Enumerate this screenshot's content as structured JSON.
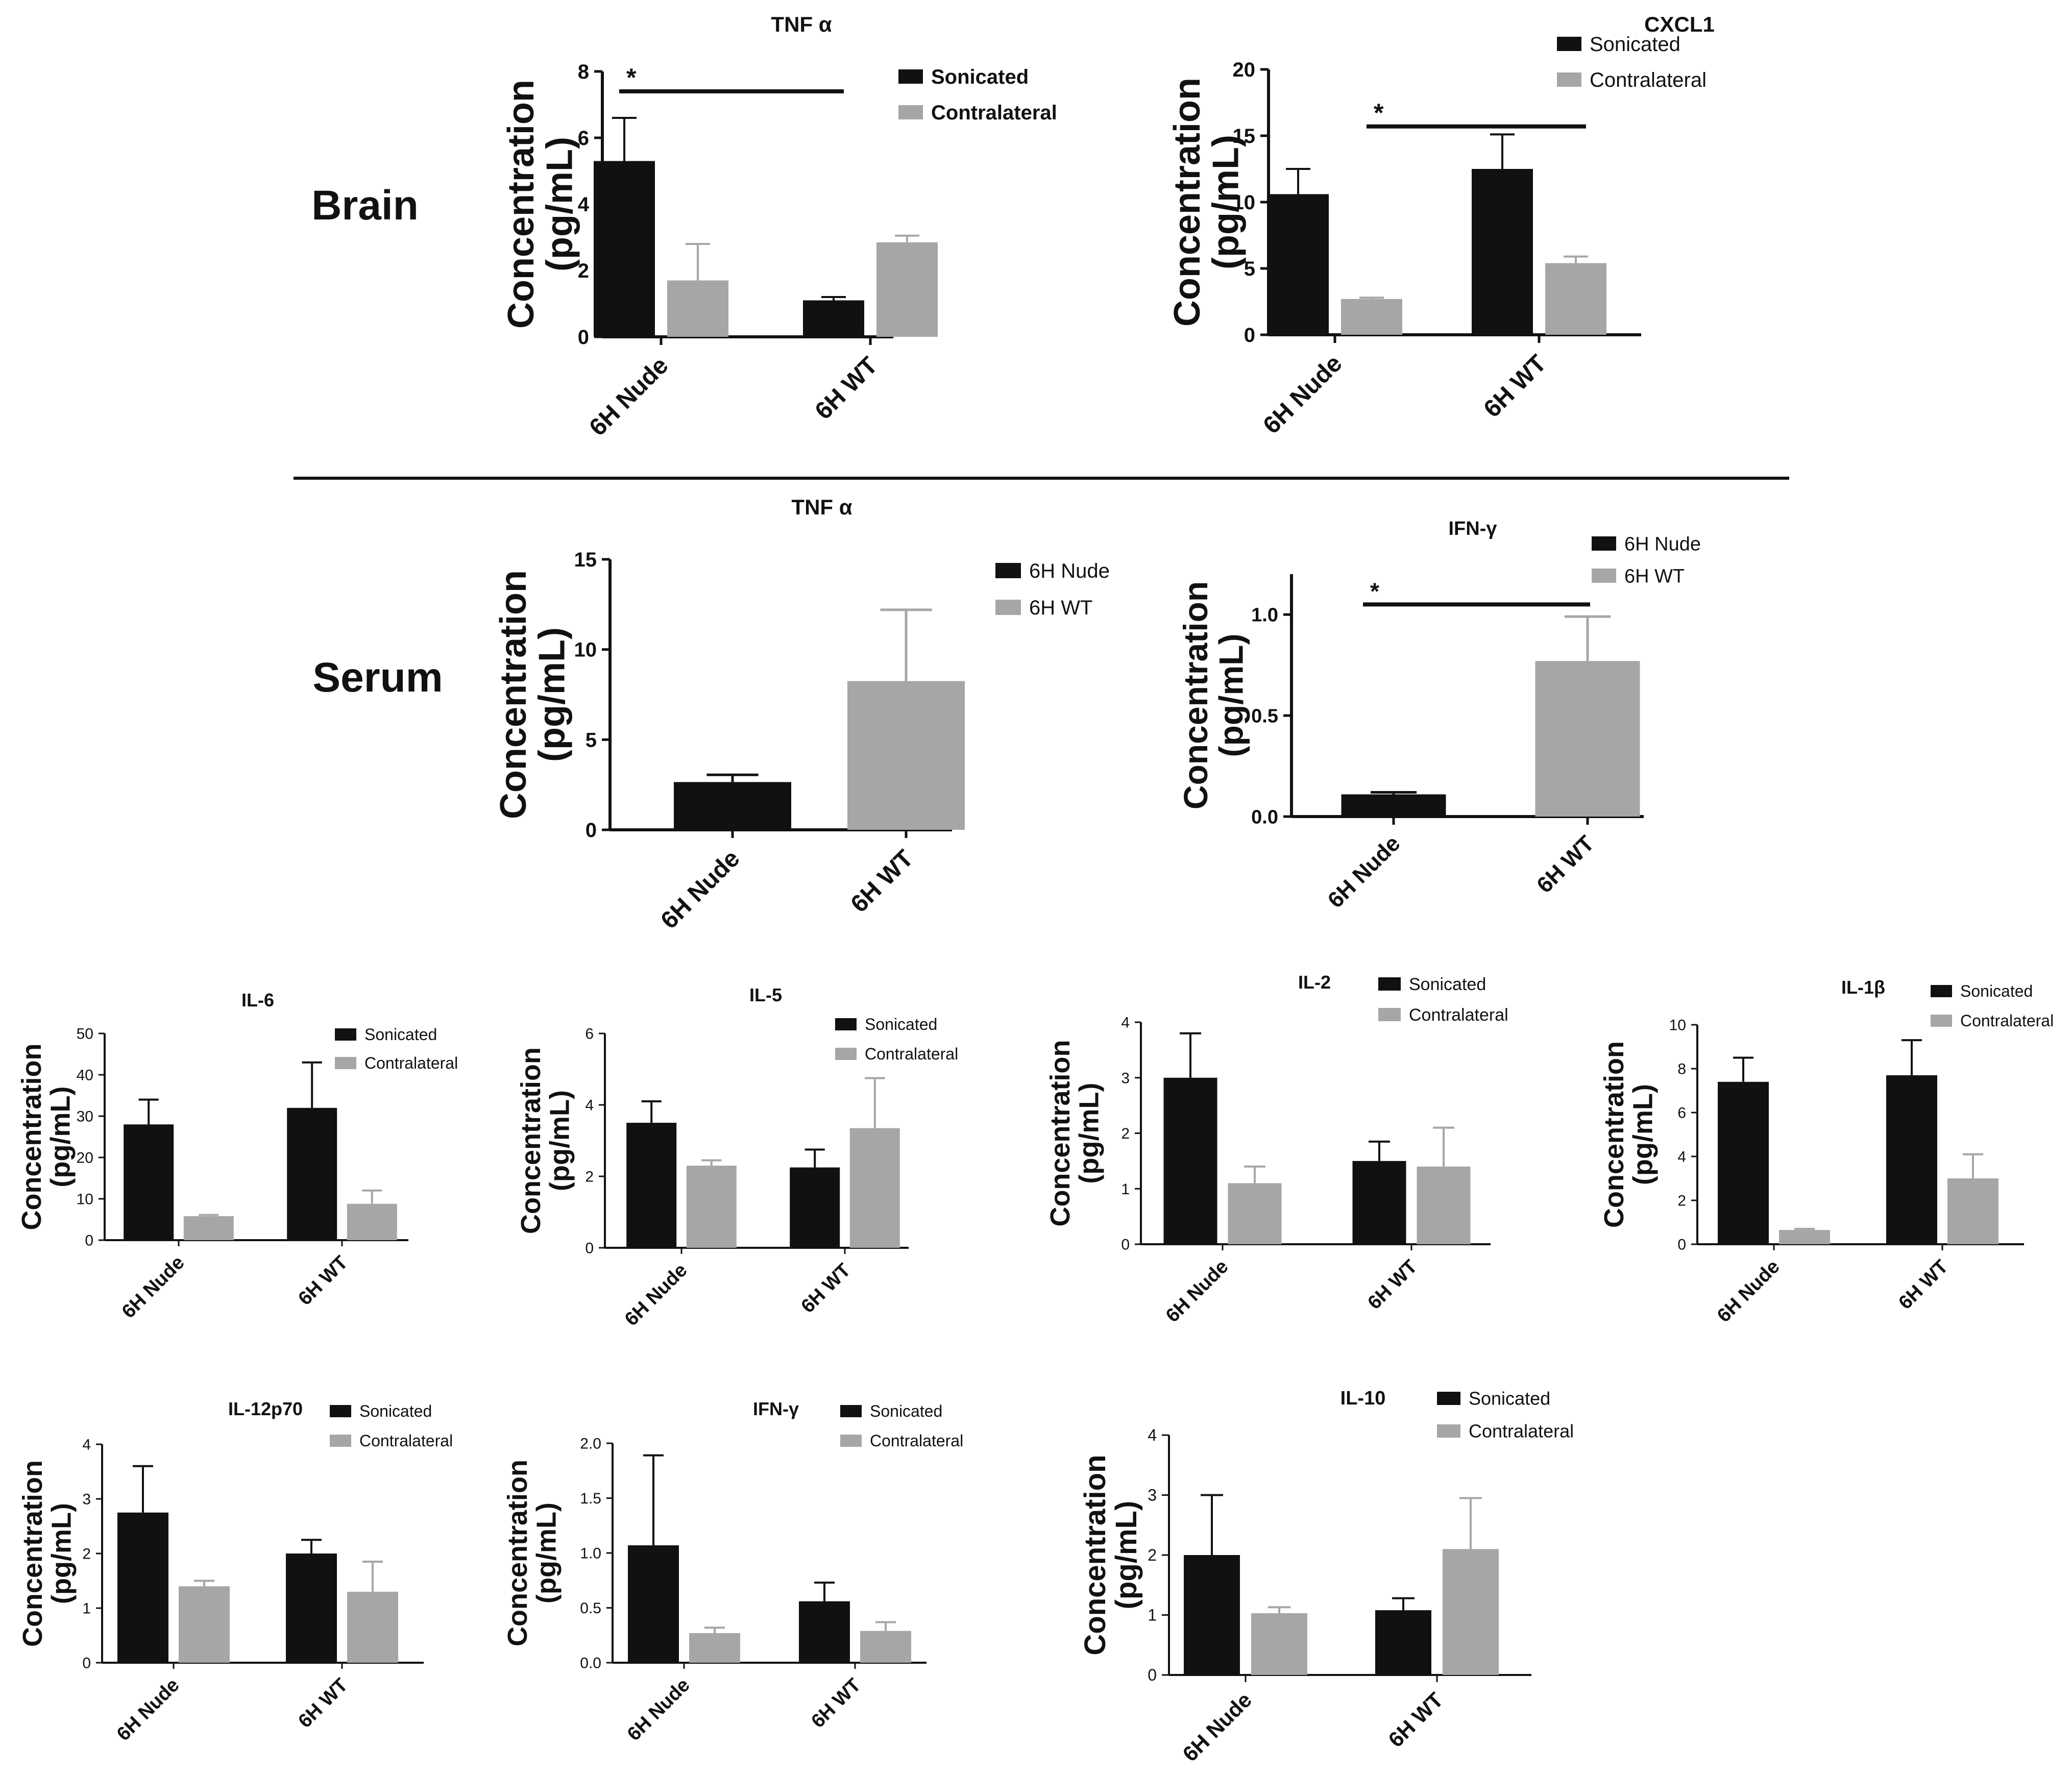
{
  "sections": {
    "brain": "Brain",
    "serum": "Serum"
  },
  "colors": {
    "black": "#111111",
    "gray": "#a6a6a8",
    "axis": "#111111"
  },
  "chart_data": [
    {
      "id": "brain-tnfa",
      "type": "bar",
      "title": "TNF α",
      "ylabel": [
        "Concentration",
        "(pg/mL)"
      ],
      "categories": [
        "6H Nude",
        "6H WT"
      ],
      "series": [
        {
          "name": "Sonicated",
          "color": "#111111",
          "values": [
            5.3,
            1.1
          ],
          "errors": [
            1.3,
            0.1
          ]
        },
        {
          "name": "Contralateral",
          "color": "#a6a6a8",
          "values": [
            1.7,
            2.85
          ],
          "errors": [
            1.1,
            0.2
          ]
        }
      ],
      "ylim": [
        0,
        8
      ],
      "yticks": [
        "0",
        "2",
        "4",
        "6",
        "8"
      ],
      "significance": [
        {
          "label": "*",
          "from": "6H Nude Sonicated",
          "to": "6H WT Sonicated",
          "y": 7.4
        }
      ]
    },
    {
      "id": "brain-cxcl1",
      "type": "bar",
      "title": "CXCL1",
      "ylabel": [
        "Concentration",
        "(pg/mL)"
      ],
      "categories": [
        "6H Nude",
        "6H WT"
      ],
      "series": [
        {
          "name": "Sonicated",
          "color": "#111111",
          "values": [
            10.6,
            12.5
          ],
          "errors": [
            1.9,
            2.6
          ]
        },
        {
          "name": "Contralateral",
          "color": "#a6a6a8",
          "values": [
            2.7,
            5.4
          ],
          "errors": [
            0.1,
            0.5
          ]
        }
      ],
      "ylim": [
        0,
        20
      ],
      "yticks": [
        "0",
        "5",
        "10",
        "15",
        "20"
      ],
      "significance": [
        {
          "label": "*",
          "from": "6H Nude Contralateral",
          "to": "6H WT Contralateral",
          "y": 15.7
        }
      ]
    },
    {
      "id": "serum-tnfa",
      "type": "bar",
      "title": "TNF α",
      "ylabel": [
        "Concentration",
        "(pg/mL)"
      ],
      "categories": [
        "6H Nude",
        "6H WT"
      ],
      "series": [
        {
          "name": "6H Nude / 6H WT",
          "values": [
            2.65,
            8.25
          ],
          "errors": [
            0.4,
            3.95
          ],
          "colors": [
            "#111111",
            "#a6a6a8"
          ]
        }
      ],
      "legend": [
        {
          "name": "6H Nude",
          "color": "#111111"
        },
        {
          "name": "6H WT",
          "color": "#a6a6a8"
        }
      ],
      "ylim": [
        0,
        15
      ],
      "yticks": [
        "0",
        "5",
        "10",
        "15"
      ]
    },
    {
      "id": "serum-ifng",
      "type": "bar",
      "title": "IFN-γ",
      "ylabel": [
        "Concentration",
        "(pg/mL)"
      ],
      "categories": [
        "6H Nude",
        "6H WT"
      ],
      "series": [
        {
          "name": "6H Nude / 6H WT",
          "values": [
            0.11,
            0.77
          ],
          "errors": [
            0.01,
            0.22
          ],
          "colors": [
            "#111111",
            "#a6a6a8"
          ]
        }
      ],
      "legend": [
        {
          "name": "6H Nude",
          "color": "#111111"
        },
        {
          "name": "6H WT",
          "color": "#a6a6a8"
        }
      ],
      "ylim": [
        0,
        1.2
      ],
      "yticks": [
        "0.0",
        "0.5",
        "1.0"
      ],
      "ytickvals": [
        0,
        0.5,
        1.0
      ],
      "significance": [
        {
          "label": "*",
          "from": "6H Nude",
          "to": "6H WT",
          "y": 1.05
        }
      ]
    },
    {
      "id": "il6",
      "type": "bar",
      "title": "IL-6",
      "ylabel": [
        "Concentration",
        "(pg/mL)"
      ],
      "categories": [
        "6H Nude",
        "6H WT"
      ],
      "series": [
        {
          "name": "Sonicated",
          "color": "#111111",
          "values": [
            28,
            32
          ],
          "errors": [
            6,
            11
          ]
        },
        {
          "name": "Contralateral",
          "color": "#a6a6a8",
          "values": [
            5.8,
            8.8
          ],
          "errors": [
            0.3,
            3.2
          ]
        }
      ],
      "ylim": [
        0,
        50
      ],
      "yticks": [
        "0",
        "10",
        "20",
        "30",
        "40",
        "50"
      ]
    },
    {
      "id": "il5",
      "type": "bar",
      "title": "IL-5",
      "ylabel": [
        "Concentration",
        "(pg/mL)"
      ],
      "categories": [
        "6H Nude",
        "6H WT"
      ],
      "series": [
        {
          "name": "Sonicated",
          "color": "#111111",
          "values": [
            3.5,
            2.25
          ],
          "errors": [
            0.6,
            0.5
          ]
        },
        {
          "name": "Contralateral",
          "color": "#a6a6a8",
          "values": [
            2.3,
            3.35
          ],
          "errors": [
            0.15,
            1.4
          ]
        }
      ],
      "ylim": [
        0,
        6
      ],
      "yticks": [
        "0",
        "2",
        "4",
        "6"
      ]
    },
    {
      "id": "il2",
      "type": "bar",
      "title": "IL-2",
      "ylabel": [
        "Concentration",
        "(pg/mL)"
      ],
      "categories": [
        "6H Nude",
        "6H WT"
      ],
      "series": [
        {
          "name": "Sonicated",
          "color": "#111111",
          "values": [
            3.0,
            1.5
          ],
          "errors": [
            0.8,
            0.35
          ]
        },
        {
          "name": "Contralateral",
          "color": "#a6a6a8",
          "values": [
            1.1,
            1.4
          ],
          "errors": [
            0.3,
            0.7
          ]
        }
      ],
      "ylim": [
        0,
        4
      ],
      "yticks": [
        "0",
        "1",
        "2",
        "3",
        "4"
      ]
    },
    {
      "id": "il1b",
      "type": "bar",
      "title": "IL-1β",
      "ylabel": [
        "Concentration",
        "(pg/mL)"
      ],
      "categories": [
        "6H Nude",
        "6H WT"
      ],
      "series": [
        {
          "name": "Sonicated",
          "color": "#111111",
          "values": [
            7.4,
            7.7
          ],
          "errors": [
            1.1,
            1.6
          ]
        },
        {
          "name": "Contralateral",
          "color": "#a6a6a8",
          "values": [
            0.65,
            3.0
          ],
          "errors": [
            0.05,
            1.1
          ]
        }
      ],
      "ylim": [
        0,
        10
      ],
      "yticks": [
        "0",
        "2",
        "4",
        "6",
        "8",
        "10"
      ]
    },
    {
      "id": "il12p70",
      "type": "bar",
      "title": "IL-12p70",
      "ylabel": [
        "Concentration",
        "(pg/mL)"
      ],
      "categories": [
        "6H Nude",
        "6H WT"
      ],
      "series": [
        {
          "name": "Sonicated",
          "color": "#111111",
          "values": [
            2.75,
            2.0
          ],
          "errors": [
            0.85,
            0.25
          ]
        },
        {
          "name": "Contralateral",
          "color": "#a6a6a8",
          "values": [
            1.4,
            1.3
          ],
          "errors": [
            0.1,
            0.55
          ]
        }
      ],
      "ylim": [
        0,
        4
      ],
      "yticks": [
        "0",
        "1",
        "2",
        "3",
        "4"
      ]
    },
    {
      "id": "ifng",
      "type": "bar",
      "title": "IFN-γ",
      "ylabel": [
        "Concentration",
        "(pg/mL)"
      ],
      "categories": [
        "6H Nude",
        "6H WT"
      ],
      "series": [
        {
          "name": "Sonicated",
          "color": "#111111",
          "values": [
            1.07,
            0.56
          ],
          "errors": [
            0.82,
            0.17
          ]
        },
        {
          "name": "Contralateral",
          "color": "#a6a6a8",
          "values": [
            0.27,
            0.29
          ],
          "errors": [
            0.05,
            0.08
          ]
        }
      ],
      "ylim": [
        0,
        2.0
      ],
      "yticks": [
        "0.0",
        "0.5",
        "1.0",
        "1.5",
        "2.0"
      ]
    },
    {
      "id": "il10",
      "type": "bar",
      "title": "IL-10",
      "ylabel": [
        "Concentration",
        "(pg/mL)"
      ],
      "categories": [
        "6H Nude",
        "6H WT"
      ],
      "series": [
        {
          "name": "Sonicated",
          "color": "#111111",
          "values": [
            2.0,
            1.08
          ],
          "errors": [
            1.0,
            0.2
          ]
        },
        {
          "name": "Contralateral",
          "color": "#a6a6a8",
          "values": [
            1.03,
            2.1
          ],
          "errors": [
            0.1,
            0.85
          ]
        }
      ],
      "ylim": [
        0,
        4
      ],
      "yticks": [
        "0",
        "1",
        "2",
        "3",
        "4"
      ]
    }
  ]
}
